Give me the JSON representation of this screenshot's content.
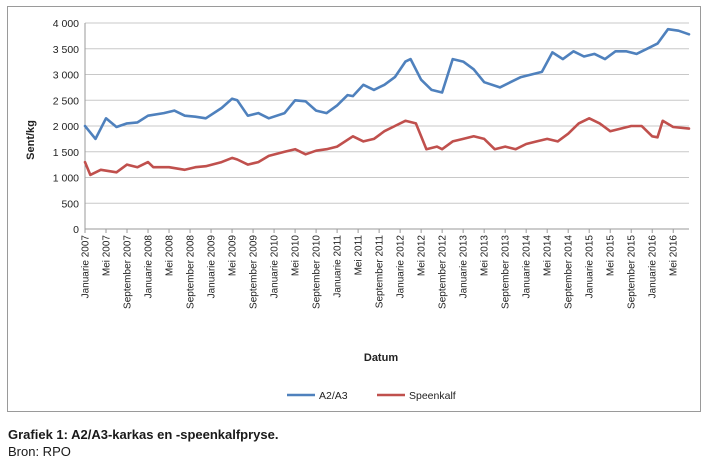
{
  "caption": "Grafiek 1: A2/A3-karkas en -speenkalfpryse.",
  "source": "Bron: RPO",
  "chart_data": {
    "type": "line",
    "title": "",
    "xlabel": "Datum",
    "ylabel": "Sent/kg",
    "ylim": [
      0,
      4000
    ],
    "yticks": [
      "0",
      "500",
      "1 000",
      "1 500",
      "2 000",
      "2 500",
      "3 000",
      "3 500",
      "4 000"
    ],
    "y_tick_values": [
      0,
      500,
      1000,
      1500,
      2000,
      2500,
      3000,
      3500,
      4000
    ],
    "grid": true,
    "legend_position": "bottom",
    "x_start": "2007-01",
    "x_end": "2016-08",
    "x_tick_labels": [
      {
        "month": "2007-01",
        "label": "Januarie 2007"
      },
      {
        "month": "2007-05",
        "label": "Mei 2007"
      },
      {
        "month": "2007-09",
        "label": "September 2007"
      },
      {
        "month": "2008-01",
        "label": "Januarie 2008"
      },
      {
        "month": "2008-05",
        "label": "Mei 2008"
      },
      {
        "month": "2008-09",
        "label": "September 2008"
      },
      {
        "month": "2009-01",
        "label": "Januarie 2009"
      },
      {
        "month": "2009-05",
        "label": "Mei 2009"
      },
      {
        "month": "2009-09",
        "label": "September 2009"
      },
      {
        "month": "2010-01",
        "label": "Januarie 2010"
      },
      {
        "month": "2010-05",
        "label": "Mei 2010"
      },
      {
        "month": "2010-09",
        "label": "September 2010"
      },
      {
        "month": "2011-01",
        "label": "Januarie 2011"
      },
      {
        "month": "2011-05",
        "label": "Mei 2011"
      },
      {
        "month": "2011-09",
        "label": "September 2011"
      },
      {
        "month": "2012-01",
        "label": "Januarie 2012"
      },
      {
        "month": "2012-05",
        "label": "Mei 2012"
      },
      {
        "month": "2012-09",
        "label": "September 2012"
      },
      {
        "month": "2013-01",
        "label": "Januarie 2013"
      },
      {
        "month": "2013-05",
        "label": "Mei 2013"
      },
      {
        "month": "2013-09",
        "label": "September 2013"
      },
      {
        "month": "2014-01",
        "label": "Januarie 2014"
      },
      {
        "month": "2014-05",
        "label": "Mei 2014"
      },
      {
        "month": "2014-09",
        "label": "September 2014"
      },
      {
        "month": "2015-01",
        "label": "Januarie 2015"
      },
      {
        "month": "2015-05",
        "label": "Mei 2015"
      },
      {
        "month": "2015-09",
        "label": "September 2015"
      },
      {
        "month": "2016-01",
        "label": "Januarie 2016"
      },
      {
        "month": "2016-05",
        "label": "Mei 2016"
      }
    ],
    "series": [
      {
        "name": "A2/A3",
        "color": "#4f81bd",
        "points": [
          [
            "2007-01",
            2000
          ],
          [
            "2007-03",
            1750
          ],
          [
            "2007-05",
            2150
          ],
          [
            "2007-07",
            1980
          ],
          [
            "2007-09",
            2050
          ],
          [
            "2007-11",
            2070
          ],
          [
            "2008-01",
            2200
          ],
          [
            "2008-04",
            2250
          ],
          [
            "2008-06",
            2300
          ],
          [
            "2008-08",
            2200
          ],
          [
            "2008-10",
            2180
          ],
          [
            "2008-12",
            2150
          ],
          [
            "2009-03",
            2350
          ],
          [
            "2009-05",
            2530
          ],
          [
            "2009-06",
            2500
          ],
          [
            "2009-08",
            2200
          ],
          [
            "2009-10",
            2250
          ],
          [
            "2009-12",
            2150
          ],
          [
            "2010-03",
            2250
          ],
          [
            "2010-05",
            2500
          ],
          [
            "2010-07",
            2480
          ],
          [
            "2010-09",
            2300
          ],
          [
            "2010-11",
            2250
          ],
          [
            "2011-01",
            2400
          ],
          [
            "2011-03",
            2600
          ],
          [
            "2011-04",
            2580
          ],
          [
            "2011-06",
            2800
          ],
          [
            "2011-08",
            2700
          ],
          [
            "2011-10",
            2800
          ],
          [
            "2011-12",
            2950
          ],
          [
            "2012-02",
            3250
          ],
          [
            "2012-03",
            3300
          ],
          [
            "2012-05",
            2900
          ],
          [
            "2012-07",
            2700
          ],
          [
            "2012-09",
            2650
          ],
          [
            "2012-11",
            3300
          ],
          [
            "2013-01",
            3250
          ],
          [
            "2013-03",
            3100
          ],
          [
            "2013-05",
            2850
          ],
          [
            "2013-08",
            2750
          ],
          [
            "2013-10",
            2850
          ],
          [
            "2013-12",
            2950
          ],
          [
            "2014-02",
            3000
          ],
          [
            "2014-04",
            3050
          ],
          [
            "2014-06",
            3430
          ],
          [
            "2014-08",
            3300
          ],
          [
            "2014-10",
            3450
          ],
          [
            "2014-12",
            3350
          ],
          [
            "2015-02",
            3400
          ],
          [
            "2015-04",
            3300
          ],
          [
            "2015-06",
            3450
          ],
          [
            "2015-08",
            3450
          ],
          [
            "2015-10",
            3400
          ],
          [
            "2015-12",
            3500
          ],
          [
            "2016-02",
            3600
          ],
          [
            "2016-04",
            3880
          ],
          [
            "2016-06",
            3850
          ],
          [
            "2016-08",
            3780
          ]
        ]
      },
      {
        "name": "Speenkalf",
        "color": "#c0504d",
        "points": [
          [
            "2007-01",
            1300
          ],
          [
            "2007-02",
            1050
          ],
          [
            "2007-04",
            1150
          ],
          [
            "2007-07",
            1100
          ],
          [
            "2007-09",
            1250
          ],
          [
            "2007-11",
            1200
          ],
          [
            "2008-01",
            1300
          ],
          [
            "2008-02",
            1200
          ],
          [
            "2008-05",
            1200
          ],
          [
            "2008-08",
            1150
          ],
          [
            "2008-10",
            1200
          ],
          [
            "2008-12",
            1220
          ],
          [
            "2009-03",
            1300
          ],
          [
            "2009-05",
            1380
          ],
          [
            "2009-06",
            1350
          ],
          [
            "2009-08",
            1250
          ],
          [
            "2009-10",
            1300
          ],
          [
            "2009-12",
            1420
          ],
          [
            "2010-03",
            1500
          ],
          [
            "2010-05",
            1550
          ],
          [
            "2010-07",
            1450
          ],
          [
            "2010-09",
            1520
          ],
          [
            "2010-11",
            1550
          ],
          [
            "2011-01",
            1600
          ],
          [
            "2011-04",
            1800
          ],
          [
            "2011-06",
            1700
          ],
          [
            "2011-08",
            1750
          ],
          [
            "2011-10",
            1900
          ],
          [
            "2011-12",
            2000
          ],
          [
            "2012-02",
            2100
          ],
          [
            "2012-04",
            2050
          ],
          [
            "2012-06",
            1550
          ],
          [
            "2012-08",
            1600
          ],
          [
            "2012-09",
            1550
          ],
          [
            "2012-11",
            1700
          ],
          [
            "2013-01",
            1750
          ],
          [
            "2013-03",
            1800
          ],
          [
            "2013-05",
            1750
          ],
          [
            "2013-07",
            1550
          ],
          [
            "2013-09",
            1600
          ],
          [
            "2013-11",
            1550
          ],
          [
            "2014-01",
            1650
          ],
          [
            "2014-03",
            1700
          ],
          [
            "2014-05",
            1750
          ],
          [
            "2014-07",
            1700
          ],
          [
            "2014-09",
            1850
          ],
          [
            "2014-11",
            2050
          ],
          [
            "2015-01",
            2150
          ],
          [
            "2015-03",
            2050
          ],
          [
            "2015-05",
            1900
          ],
          [
            "2015-07",
            1950
          ],
          [
            "2015-09",
            2000
          ],
          [
            "2015-11",
            2000
          ],
          [
            "2016-01",
            1800
          ],
          [
            "2016-02",
            1780
          ],
          [
            "2016-03",
            2100
          ],
          [
            "2016-05",
            1980
          ],
          [
            "2016-08",
            1950
          ]
        ]
      }
    ]
  }
}
